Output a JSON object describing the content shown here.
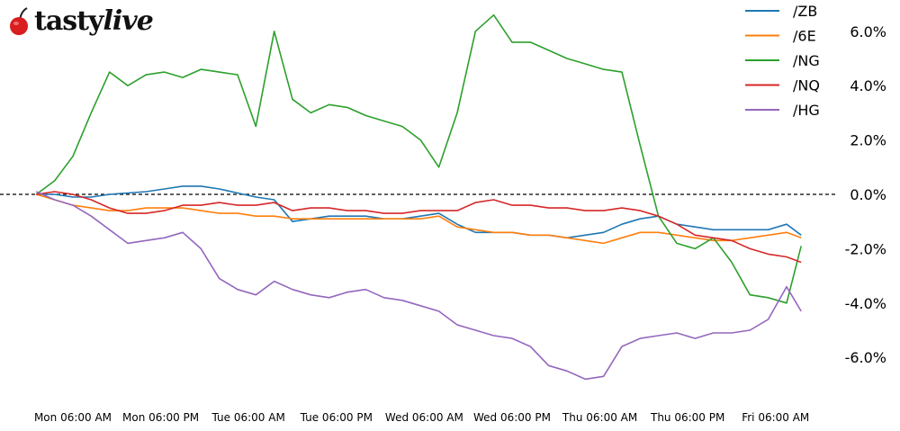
{
  "brand": {
    "logo_text": "tastylive"
  },
  "chart_data": {
    "type": "line",
    "title": "",
    "xlabel": "",
    "ylabel": "",
    "x_unit": "hours since Mon 00:00",
    "x": [
      1,
      3.5,
      6,
      8.5,
      11,
      13.5,
      16,
      18.5,
      21,
      23.5,
      26,
      28.5,
      31,
      33.5,
      36,
      38.5,
      41,
      43.5,
      46,
      48.5,
      51,
      53.5,
      56,
      58.5,
      61,
      63.5,
      66,
      68.5,
      71,
      73.5,
      76,
      78.5,
      81,
      83.5,
      86,
      88.5,
      91,
      93.5,
      96,
      98.5,
      101,
      103.5,
      105.5
    ],
    "xlim": [
      0,
      112
    ],
    "ylim": [
      -7,
      7
    ],
    "x_ticks": [
      {
        "value": 6,
        "label": "Mon 06:00 AM"
      },
      {
        "value": 18,
        "label": "Mon 06:00 PM"
      },
      {
        "value": 30,
        "label": "Tue 06:00 AM"
      },
      {
        "value": 42,
        "label": "Tue 06:00 PM"
      },
      {
        "value": 54,
        "label": "Wed 06:00 AM"
      },
      {
        "value": 66,
        "label": "Wed 06:00 PM"
      },
      {
        "value": 78,
        "label": "Thu 06:00 AM"
      },
      {
        "value": 90,
        "label": "Thu 06:00 PM"
      },
      {
        "value": 102,
        "label": "Fri 06:00 AM"
      }
    ],
    "y_ticks": [
      {
        "value": 6,
        "label": "6.0%"
      },
      {
        "value": 4,
        "label": "4.0%"
      },
      {
        "value": 2,
        "label": "2.0%"
      },
      {
        "value": 0,
        "label": "0.0%"
      },
      {
        "value": -2,
        "label": "-2.0%"
      },
      {
        "value": -4,
        "label": "-4.0%"
      },
      {
        "value": -6,
        "label": "-6.0%"
      }
    ],
    "zero_line": "dashed",
    "grid": false,
    "legend_placement": "top-right",
    "series": [
      {
        "name": "/ZB",
        "color": "#1f77b4",
        "values": [
          0,
          0,
          -0.1,
          -0.1,
          0,
          0.05,
          0.1,
          0.2,
          0.3,
          0.3,
          0.2,
          0.05,
          -0.1,
          -0.2,
          -1.0,
          -0.9,
          -0.8,
          -0.8,
          -0.8,
          -0.9,
          -0.9,
          -0.8,
          -0.7,
          -1.1,
          -1.4,
          -1.4,
          -1.4,
          -1.5,
          -1.5,
          -1.6,
          -1.5,
          -1.4,
          -1.1,
          -0.9,
          -0.8,
          -1.1,
          -1.2,
          -1.3,
          -1.3,
          -1.3,
          -1.3,
          -1.1,
          -1.5
        ]
      },
      {
        "name": "/6E",
        "color": "#ff7f0e",
        "values": [
          0,
          -0.2,
          -0.4,
          -0.5,
          -0.6,
          -0.6,
          -0.5,
          -0.5,
          -0.5,
          -0.6,
          -0.7,
          -0.7,
          -0.8,
          -0.8,
          -0.9,
          -0.9,
          -0.9,
          -0.9,
          -0.9,
          -0.9,
          -0.9,
          -0.9,
          -0.8,
          -1.2,
          -1.3,
          -1.4,
          -1.4,
          -1.5,
          -1.5,
          -1.6,
          -1.7,
          -1.8,
          -1.6,
          -1.4,
          -1.4,
          -1.5,
          -1.6,
          -1.7,
          -1.7,
          -1.6,
          -1.5,
          -1.4,
          -1.6
        ]
      },
      {
        "name": "/NG",
        "color": "#2ca02c",
        "values": [
          0,
          0.5,
          1.4,
          3.0,
          4.5,
          4.0,
          4.4,
          4.5,
          4.3,
          4.6,
          4.5,
          4.4,
          2.5,
          6.0,
          3.5,
          3.0,
          3.3,
          3.2,
          2.9,
          2.7,
          2.5,
          2.0,
          1.0,
          3.0,
          6.0,
          6.6,
          5.6,
          5.6,
          5.3,
          5.0,
          4.8,
          4.6,
          4.5,
          1.8,
          -0.8,
          -1.8,
          -2.0,
          -1.6,
          -2.5,
          -3.7,
          -3.8,
          -4.0,
          -1.9
        ]
      },
      {
        "name": "/NQ",
        "color": "#d62728",
        "values": [
          0,
          0.1,
          0,
          -0.2,
          -0.5,
          -0.7,
          -0.7,
          -0.6,
          -0.4,
          -0.4,
          -0.3,
          -0.4,
          -0.4,
          -0.3,
          -0.6,
          -0.5,
          -0.5,
          -0.6,
          -0.6,
          -0.7,
          -0.7,
          -0.6,
          -0.6,
          -0.6,
          -0.3,
          -0.2,
          -0.4,
          -0.4,
          -0.5,
          -0.5,
          -0.6,
          -0.6,
          -0.5,
          -0.6,
          -0.8,
          -1.1,
          -1.5,
          -1.6,
          -1.7,
          -2.0,
          -2.2,
          -2.3,
          -2.5
        ]
      },
      {
        "name": "/HG",
        "color": "#9467bd",
        "values": [
          0.1,
          -0.2,
          -0.4,
          -0.8,
          -1.3,
          -1.8,
          -1.7,
          -1.6,
          -1.4,
          -2.0,
          -3.1,
          -3.5,
          -3.7,
          -3.2,
          -3.5,
          -3.7,
          -3.8,
          -3.6,
          -3.5,
          -3.8,
          -3.9,
          -4.1,
          -4.3,
          -4.8,
          -5.0,
          -5.2,
          -5.3,
          -5.6,
          -6.3,
          -6.5,
          -6.8,
          -6.7,
          -5.6,
          -5.3,
          -5.2,
          -5.1,
          -5.3,
          -5.1,
          -5.1,
          -5.0,
          -4.6,
          -3.4,
          -4.3
        ]
      }
    ]
  }
}
